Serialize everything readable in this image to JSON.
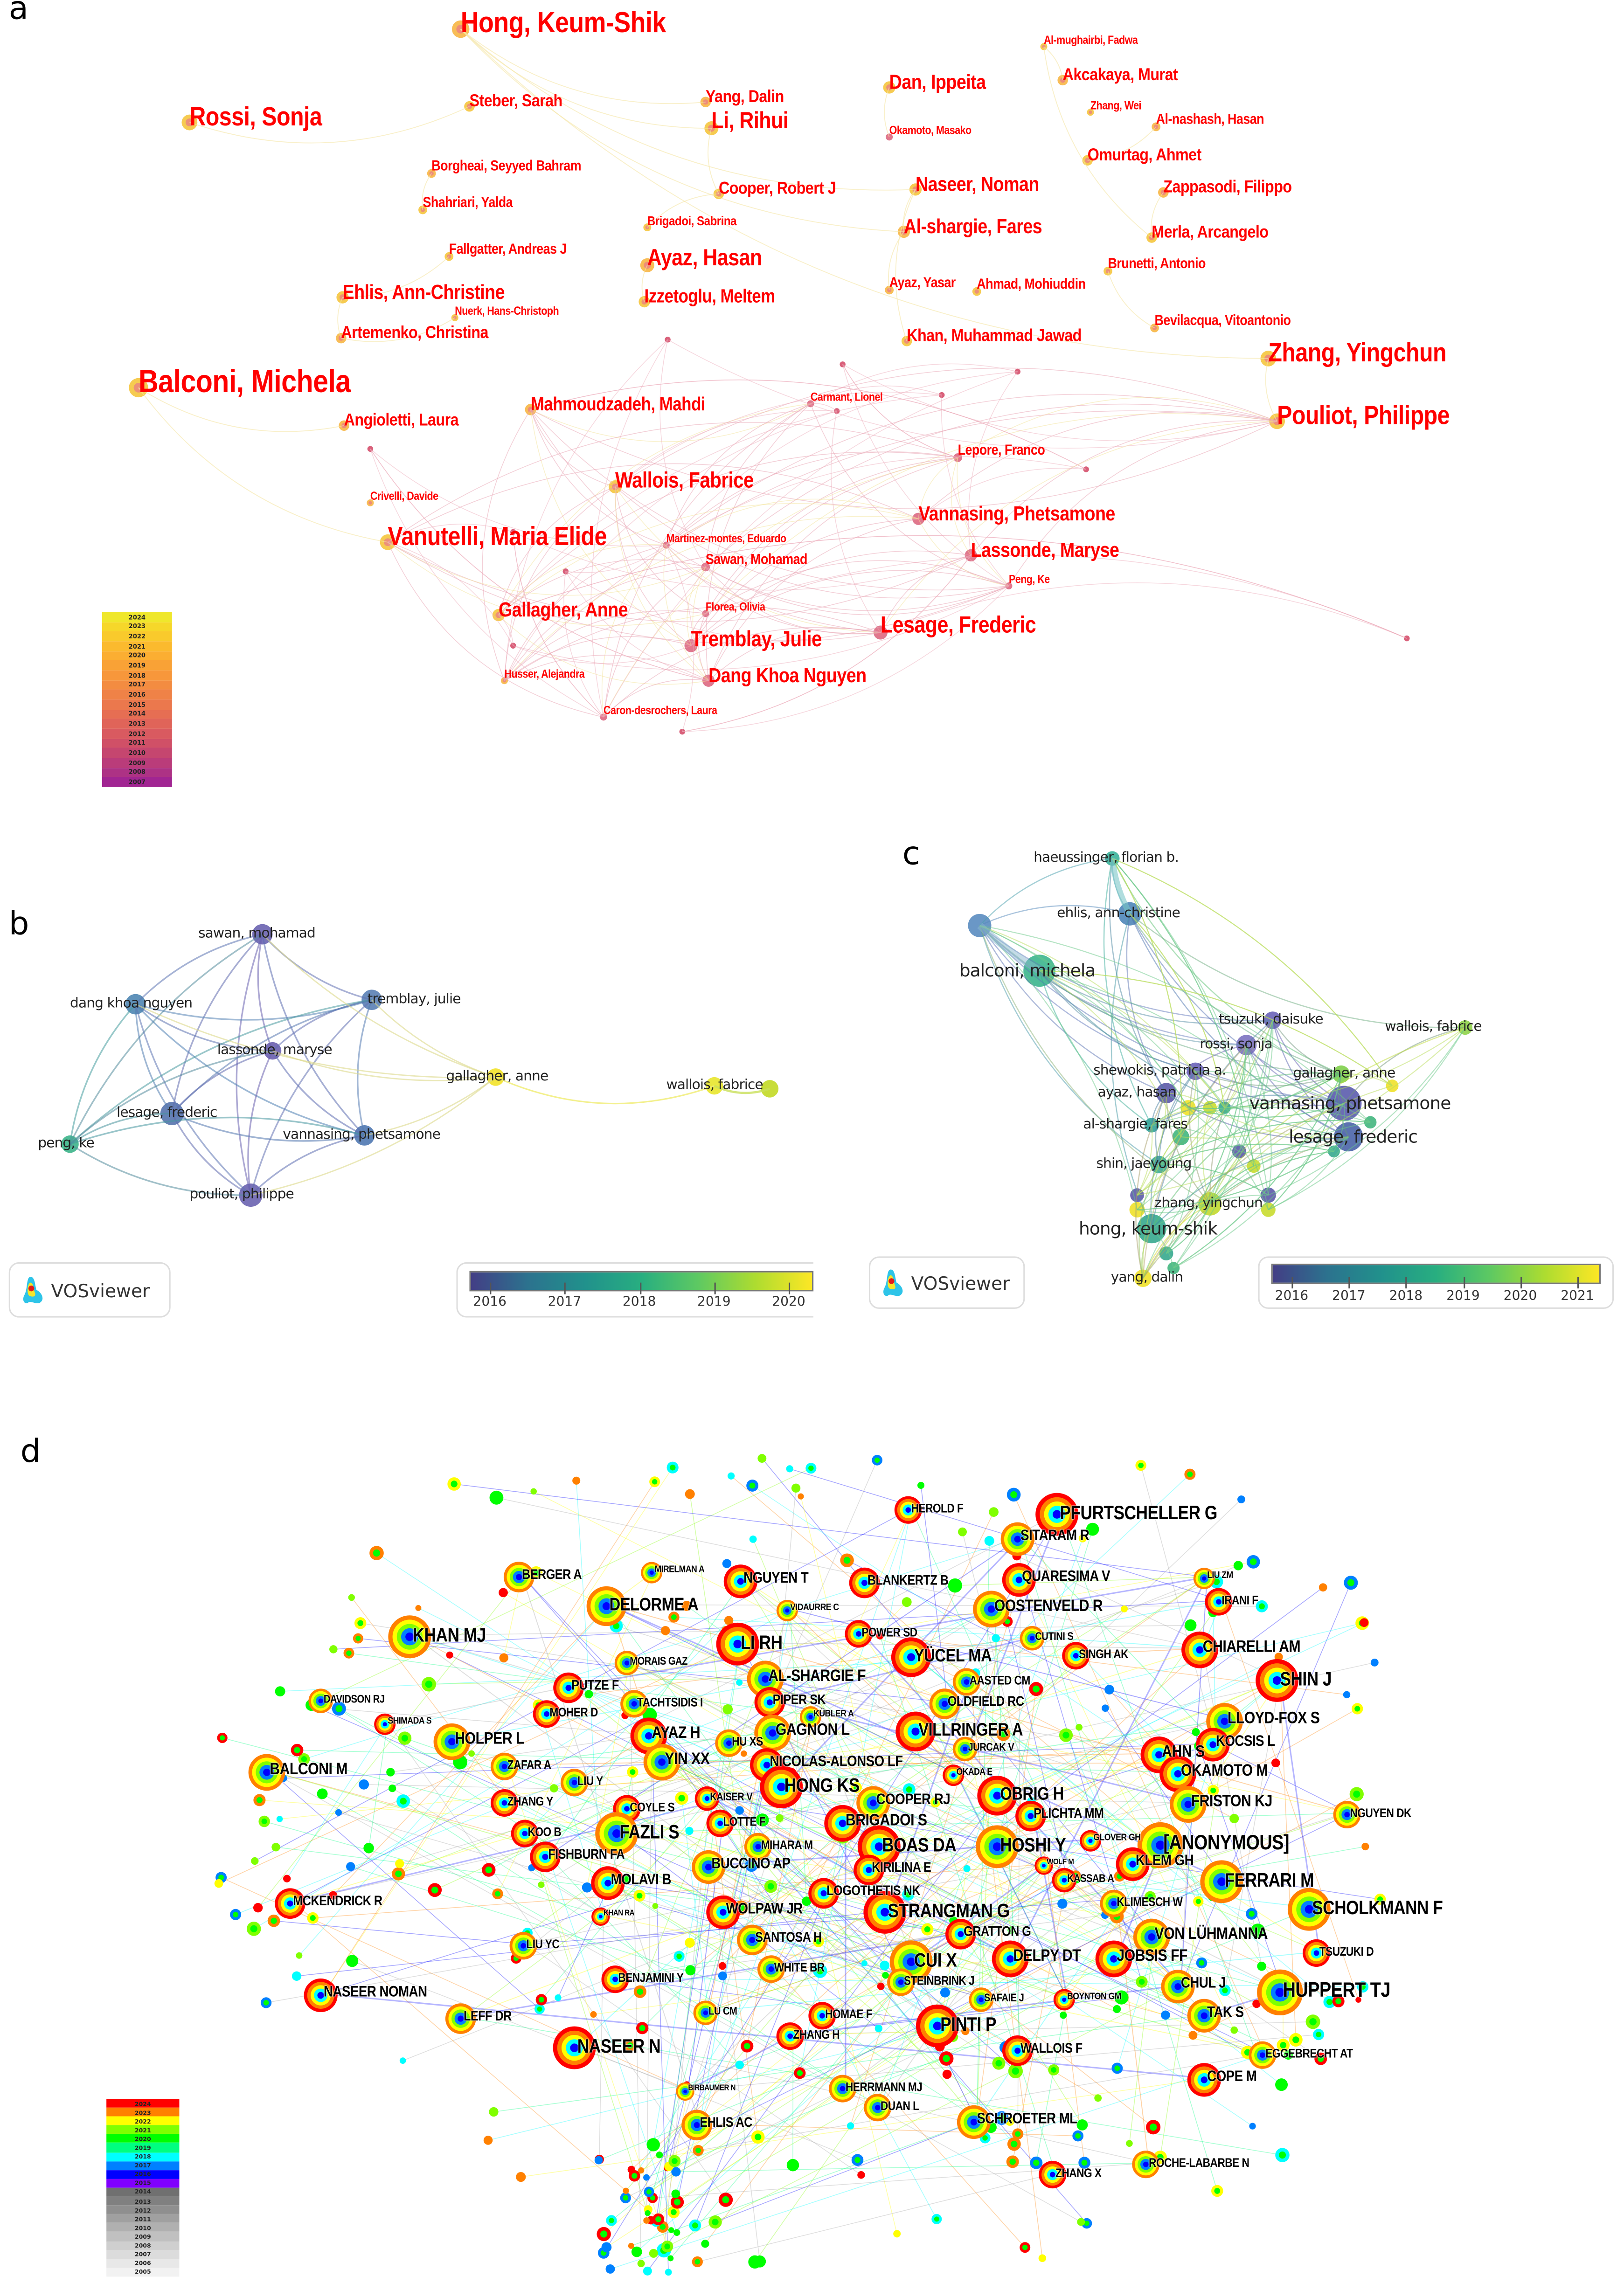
{
  "panel_a": {
    "label": "a",
    "label_color": "#ff0000",
    "nodes": [
      "Hong, Keum-Shik",
      "Rossi, Sonja",
      "Steber, Sarah",
      "Yang, Dalin",
      "Li, Rihui",
      "Dan, Ippeita",
      "Akcakaya, Murat",
      "Al-mughairbi, Fadwa",
      "Zhang, Wei",
      "Al-nashash, Hasan",
      "Okamoto, Masako",
      "Omurtag, Ahmet",
      "Borgheai, Seyyed Bahram",
      "Cooper, Robert J",
      "Naseer, Noman",
      "Zappasodi, Filippo",
      "Shahriari, Yalda",
      "Brigadoi, Sabrina",
      "Al-shargie, Fares",
      "Merla, Arcangelo",
      "Fallgatter, Andreas J",
      "Ayaz, Hasan",
      "Brunetti, Antonio",
      "Ehlis, Ann-Christine",
      "Ayaz, Yasar",
      "Ahmad, Mohiuddin",
      "Izzetoglu, Meltem",
      "Artemenko, Christina",
      "Nuerk, Hans-Christoph",
      "Khan, Muhammad Jawad",
      "Bevilacqua, Vitoantonio",
      "Zhang, Yingchun",
      "Balconi, Michela",
      "Mahmoudzadeh, Mahdi",
      "Carmant, Lionel",
      "Pouliot, Philippe",
      "Angioletti, Laura",
      "Lepore, Franco",
      "Wallois, Fabrice",
      "Crivelli, Davide",
      "Vannasing, Phetsamone",
      "Vanutelli, Maria Elide",
      "Martinez-montes, Eduardo",
      "Lassonde, Maryse",
      "Sawan, Mohamad",
      "Peng, Ke",
      "Gallagher, Anne",
      "Florea, Olivia",
      "Lesage, Frederic",
      "Tremblay, Julie",
      "Dang Khoa Nguyen",
      "Husser, Alejandra",
      "Caron-desrochers, Laura"
    ],
    "legend": {
      "years": [
        "2024",
        "2023",
        "2022",
        "2021",
        "2020",
        "2019",
        "2018",
        "2017",
        "2016",
        "2015",
        "2014",
        "2013",
        "2012",
        "2011",
        "2010",
        "2009",
        "2008",
        "2007"
      ],
      "colors": [
        "#efe72c",
        "#f6d72a",
        "#f9ca2c",
        "#fbba2e",
        "#fbae32",
        "#f9a236",
        "#f7973b",
        "#f38c41",
        "#ef8247",
        "#eb784d",
        "#e66e53",
        "#e06459",
        "#d95a60",
        "#d05067",
        "#c5466f",
        "#ba3c7a",
        "#ad3285",
        "#a12592"
      ]
    }
  },
  "panel_b": {
    "label": "b",
    "nodes": [
      {
        "name": "sawan, mohamad",
        "color": "#6a63b0"
      },
      {
        "name": "dang khoa nguyen",
        "color": "#4f86b3"
      },
      {
        "name": "tremblay, julie",
        "color": "#5a7fb5"
      },
      {
        "name": "lassonde, maryse",
        "color": "#6a5fae"
      },
      {
        "name": "gallagher, anne",
        "color": "#f2e22a"
      },
      {
        "name": "wallois, fabrice",
        "color": "#e8e52c"
      },
      {
        "name": "lesage, frederic",
        "color": "#5573ad"
      },
      {
        "name": "vannasing, phetsamone",
        "color": "#4f78b1"
      },
      {
        "name": "peng, ke",
        "color": "#3cb48a"
      },
      {
        "name": "pouliot, philippe",
        "color": "#6a63b0"
      }
    ],
    "logo_text": "VOSviewer",
    "colorbar_ticks": [
      "2016",
      "2017",
      "2018",
      "2019",
      "2020"
    ]
  },
  "panel_c": {
    "label": "c",
    "nodes": [
      {
        "name": "haeussinger, florian b.",
        "color": "#3ab39a"
      },
      {
        "name": "ehlis, ann-christine",
        "color": "#4f86b8"
      },
      {
        "name": "",
        "color": "#5a8cc0"
      },
      {
        "name": "balconi, michela",
        "color": "#3bb58d"
      },
      {
        "name": "tsuzuki, daisuke",
        "color": "#6a63b8"
      },
      {
        "name": "rossi, sonja",
        "color": "#7c72c0"
      },
      {
        "name": "wallois, fabrice",
        "color": "#8fd34a"
      },
      {
        "name": "shewokis, patricia a.",
        "color": "#6a63b8"
      },
      {
        "name": "ayaz, hasan",
        "color": "#5c5aa8"
      },
      {
        "name": "gallagher, anne",
        "color": "#7fcf4b"
      },
      {
        "name": "vannasing, phetsamone",
        "color": "#5b5cad"
      },
      {
        "name": "al-shargie, fares",
        "color": "#33a39a"
      },
      {
        "name": "lesage, frederic",
        "color": "#4a64a8"
      },
      {
        "name": "shin, jaeyoung",
        "color": "#3aa893"
      },
      {
        "name": "zhang, yingchun",
        "color": "#c2d92e"
      },
      {
        "name": "hong, keum-shik",
        "color": "#36a98e"
      },
      {
        "name": "yang, dalin",
        "color": "#f1e22a"
      }
    ],
    "logo_text": "VOSviewer",
    "colorbar_ticks": [
      "2016",
      "2017",
      "2018",
      "2019",
      "2020",
      "2021"
    ]
  },
  "panel_d": {
    "label": "d",
    "nodes": [
      "HEROLD F",
      "PFURTSCHELLER G",
      "SITARAM R",
      "BERGER A",
      "MIRELMAN A",
      "NGUYEN T",
      "BLANKERTZ B",
      "QUARESIMA V",
      "LIU ZM",
      "DELORME A",
      "VIDAURRE C",
      "OOSTENVELD R",
      "IRANI F",
      "KHAN MJ",
      "POWER SD",
      "CUTINI S",
      "LI RH",
      "CHIARELLI AM",
      "MORAIS GAZ",
      "SINGH AK",
      "YÜCEL MA",
      "AL-SHARGIE F",
      "AASTED CM",
      "SHIN J",
      "PUTZE F",
      "DAVIDSON RJ",
      "TACHTSIDIS I",
      "PIPER SK",
      "OLDFIELD RC",
      "MOHER D",
      "SHIMADA S",
      "KÜBLER A",
      "LLOYD-FOX S",
      "AYAZ H",
      "GAGNON L",
      "VILLRINGER A",
      "HOLPER L",
      "KOCSIS L",
      "HU XS",
      "JURCAK V",
      "AHN S",
      "ZAFAR A",
      "YIN XX",
      "NICOLAS-ALONSO LF",
      "BALCONI M",
      "OKAMOTO M",
      "LIU Y",
      "HONG KS",
      "OKADA E",
      "OBRIG H",
      "ZHANG Y",
      "COYLE S",
      "COOPER RJ",
      "FRISTON KJ",
      "KAISER V",
      "PLICHTA MM",
      "NGUYEN DK",
      "BRIGADOI S",
      "KOO B",
      "FAZLI S",
      "LOTTE F",
      "MIHARA M",
      "BOAS DA",
      "HOSHI Y",
      "GLOVER GH",
      "[ANONYMOUS]",
      "FISHBURN FA",
      "BUCCINO AP",
      "KIRILINA E",
      "WOLF M",
      "KLEM GH",
      "KASSAB A",
      "FERRARI M",
      "MOLAVI B",
      "LOGOTHETIS NK",
      "KLIMESCH W",
      "SCHOLKMANN F",
      "MCKENDRICK R",
      "WOLPAW JR",
      "STRANGMAN G",
      "KHAN RA",
      "GRATTON G",
      "VON LÜHMANNA",
      "SANTOSA H",
      "TSUZUKI D",
      "LIU YC",
      "CUI X",
      "DELPY DT",
      "JOBSIS FF",
      "WHITE BR",
      "BENJAMINI Y",
      "STEINBRINK J",
      "CHUL J",
      "HUPPERT TJ",
      "NASEER NOMAN",
      "SAFAIE J",
      "BOYNTON GM",
      "LU CM",
      "HOMAE F",
      "TAK S",
      "LEFF DR",
      "PINTI P",
      "ZHANG H",
      "NASEER N",
      "WALLOIS F",
      "EGGEBRECHT AT",
      "COPE M",
      "BIRBAUMER N",
      "HERRMANN MJ",
      "DUAN L",
      "EHLIS AC",
      "SCHROETER ML",
      "ROCHE-LABARBE N",
      "ZHANG X"
    ],
    "legend": {
      "years": [
        "2024",
        "2023",
        "2022",
        "2021",
        "2020",
        "2019",
        "2018",
        "2017",
        "2016",
        "2015",
        "2014",
        "2013",
        "2012",
        "2011",
        "2010",
        "2009",
        "2008",
        "2007",
        "2006",
        "2005"
      ],
      "colors": [
        "#ff0000",
        "#ff8000",
        "#ffff00",
        "#80ff00",
        "#00ff00",
        "#00ff80",
        "#00ffff",
        "#0080ff",
        "#0000ff",
        "#8000ff",
        "#707070",
        "#808080",
        "#8f8f8f",
        "#a0a0a0",
        "#b0b0b0",
        "#c0c0c0",
        "#cfcfcf",
        "#dcdcdc",
        "#e8e8e8",
        "#f2f2f2"
      ]
    }
  }
}
